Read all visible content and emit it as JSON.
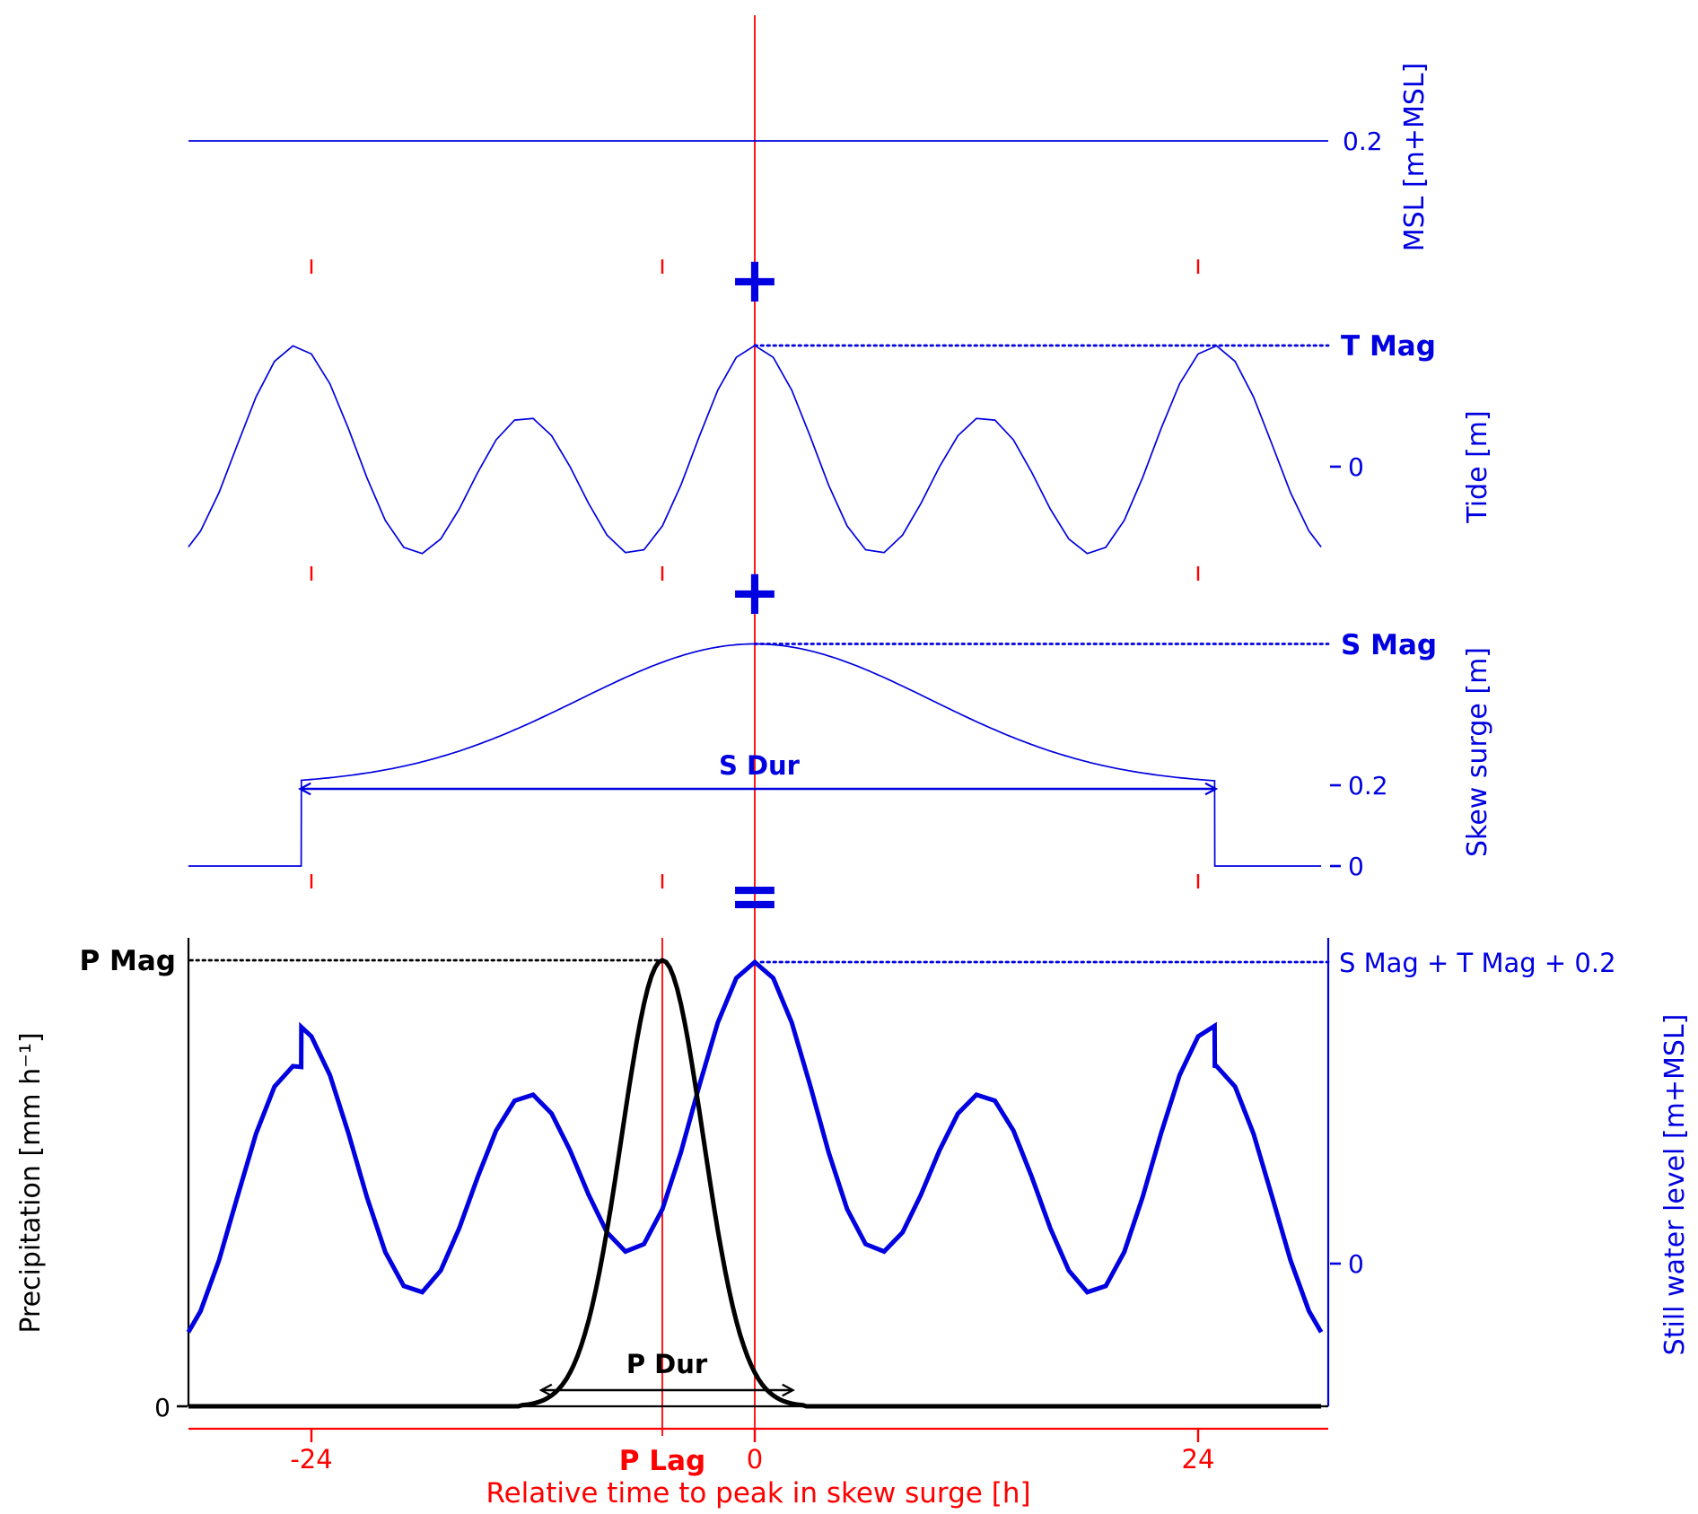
{
  "labels": {
    "msl_tick": "0.2",
    "msl_axis": "MSL [m+MSL]",
    "plus": "+",
    "equals": "=",
    "t_mag": "T Mag",
    "tide_zero": "0",
    "tide_axis": "Tide [m]",
    "s_mag": "S Mag",
    "s_dur": "S Dur",
    "surge_plateau_tick": "0.2",
    "surge_zero": "0",
    "surge_axis": "Skew surge [m]",
    "p_mag": "P Mag",
    "p_dur": "P Dur",
    "p_lag": "P Lag",
    "precip_zero": "0",
    "precip_axis": "Precipitation [mm h⁻¹]",
    "swl_sum": "S Mag + T Mag + 0.2",
    "swl_zero": "0",
    "swl_axis": "Still water level [m+MSL]",
    "x_axis_title": "Relative time to peak in skew surge [h]"
  },
  "x_ticks": [
    {
      "value": -24,
      "label": "-24"
    },
    {
      "value": 0,
      "label": "0"
    },
    {
      "value": 24,
      "label": "24"
    }
  ],
  "colors": {
    "blue": "#0000e0",
    "red": "#ff0000",
    "black": "#000000"
  },
  "chart_data": {
    "type": "line",
    "x_label": "Relative time to peak in skew surge [h]",
    "x_range_h": [
      -30.66,
      30.66
    ],
    "x_tick_values": [
      -24,
      0,
      24
    ],
    "msl": {
      "value": 0.2,
      "unit": "m+MSL",
      "tick_label": "0.2"
    },
    "tide": {
      "unit": "m",
      "zero_tick": 0,
      "peak_time_h": 0,
      "peak_label": "T Mag",
      "components": [
        {
          "amplitude": 0.6,
          "period_h": 12.42
        },
        {
          "amplitude": 0.25,
          "period_h": 24.84
        }
      ]
    },
    "skew_surge": {
      "unit": "m",
      "baseline": 0,
      "plateau": 0.2,
      "peak": 0.55,
      "sigma_h": 9.5,
      "duration_h": [
        -24.55,
        24.9
      ],
      "duration_label": "S Dur",
      "peak_label": "S Mag",
      "tick_labels": [
        "0",
        "0.2"
      ]
    },
    "still_water_level": {
      "unit": "m+MSL",
      "formula": "tide + skew_surge + 0.2",
      "zero_tick": 0,
      "peak_label": "S Mag + T Mag + 0.2",
      "peak_time_h": 0
    },
    "precipitation": {
      "unit": "mm h⁻¹",
      "baseline": 0,
      "peak_normalized": 1,
      "peak_label": "P Mag",
      "lag_h": -5,
      "lag_label": "P Lag",
      "sigma_h": 2.2,
      "duration_h": [
        -11.5,
        2
      ],
      "duration_label": "P Dur"
    }
  }
}
